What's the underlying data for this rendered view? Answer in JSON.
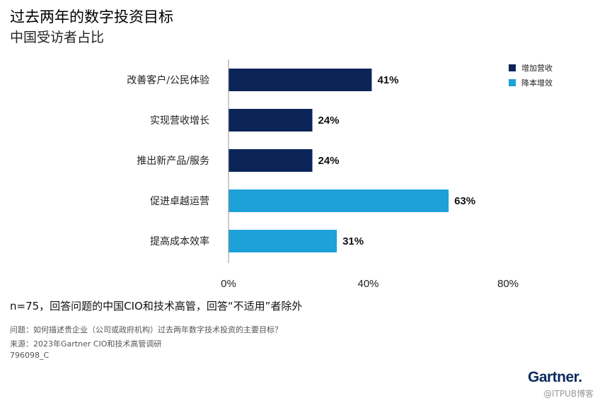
{
  "title": "过去两年的数字投资目标",
  "subtitle": "中国受访者占比",
  "chart_data": {
    "type": "bar",
    "orientation": "horizontal",
    "categories": [
      "改善客户/公民体验",
      "实现营收增长",
      "推出新产品/服务",
      "促进卓越运营",
      "提高成本效率"
    ],
    "values": [
      41,
      24,
      24,
      63,
      31
    ],
    "value_labels": [
      "41%",
      "24%",
      "24%",
      "63%",
      "31%"
    ],
    "group": [
      "增加营收",
      "增加营收",
      "增加营收",
      "降本增效",
      "降本增效"
    ],
    "series": [
      {
        "name": "增加营收",
        "color": "#0b2559"
      },
      {
        "name": "降本增效",
        "color": "#1ea0d8"
      }
    ],
    "x_ticks": [
      "0%",
      "40%",
      "80%"
    ],
    "xlim": [
      0,
      80
    ],
    "legend_position": "top-right",
    "grid": false
  },
  "footnote": "n=75，回答问题的中国CIO和技术高管，回答“不适用”者除外",
  "question": "问题：如何描述贵企业（公司或政府机构）过去两年数字技术投资的主要目标？",
  "source": "来源：2023年Gartner CIO和技术高管调研",
  "doc_id": "796098_C",
  "brand": "Gartner.",
  "watermark": "@ITPUB博客"
}
